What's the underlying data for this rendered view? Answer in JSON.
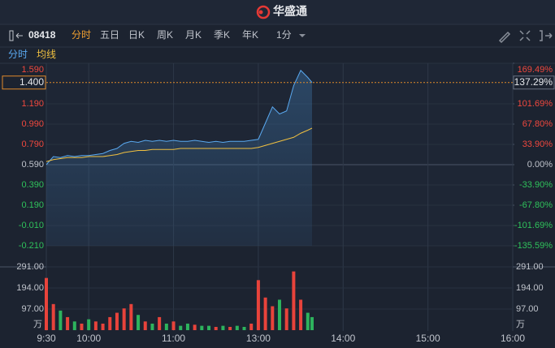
{
  "header": {
    "title": "华盛通"
  },
  "toolbar": {
    "code": "08418",
    "tabs": [
      "分时",
      "五日",
      "日K",
      "周K",
      "月K",
      "季K",
      "年K"
    ],
    "interval": "1分"
  },
  "chart_data": [
    {
      "type": "line",
      "x": [
        0,
        5,
        10,
        15,
        20,
        25,
        30,
        35,
        40,
        45,
        50,
        55,
        60,
        65,
        70,
        75,
        80,
        85,
        90,
        95,
        100,
        105,
        110,
        115,
        120,
        125,
        130,
        135,
        140,
        145,
        150,
        155,
        160,
        165,
        170,
        175,
        180,
        185,
        188
      ],
      "xlim": [
        0,
        330
      ],
      "xticks": [
        {
          "value": 0,
          "label": "9:30"
        },
        {
          "value": 30,
          "label": "10:00"
        },
        {
          "value": 90,
          "label": "11:00"
        },
        {
          "value": 150,
          "label": "13:00"
        },
        {
          "value": 210,
          "label": "14:00"
        },
        {
          "value": 270,
          "label": "15:00"
        },
        {
          "value": 330,
          "label": "16:00"
        }
      ],
      "ylim": [
        -0.21,
        1.59
      ],
      "yticks": [
        {
          "value": 1.59,
          "label": "1.590"
        },
        {
          "value": 1.19,
          "label": "1.190"
        },
        {
          "value": 0.99,
          "label": "0.990"
        },
        {
          "value": 0.79,
          "label": "0.790"
        },
        {
          "value": 0.59,
          "label": "0.590"
        },
        {
          "value": 0.39,
          "label": "0.390"
        },
        {
          "value": 0.19,
          "label": "0.190"
        },
        {
          "value": -0.01,
          "label": "-0.010"
        },
        {
          "value": -0.21,
          "label": "-0.210"
        }
      ],
      "y2lim": [
        -135.59,
        169.49
      ],
      "y2ticks": [
        {
          "value": 169.49,
          "label": "169.49%"
        },
        {
          "value": 101.69,
          "label": "101.69%"
        },
        {
          "value": 67.8,
          "label": "67.80%"
        },
        {
          "value": 33.9,
          "label": "33.90%"
        },
        {
          "value": 0,
          "label": "0.00%"
        },
        {
          "value": -33.9,
          "label": "-33.90%"
        },
        {
          "value": -67.8,
          "label": "-67.80%"
        },
        {
          "value": -101.69,
          "label": "-101.69%"
        },
        {
          "value": -135.59,
          "label": "-135.59%"
        }
      ],
      "last_price": {
        "value": 1.4,
        "label": "1.400"
      },
      "last_change": {
        "value": 137.29,
        "label": "137.29%"
      },
      "series": [
        {
          "name": "分时",
          "color": "#5aa9f0",
          "values": [
            0.59,
            0.67,
            0.66,
            0.68,
            0.67,
            0.68,
            0.68,
            0.69,
            0.7,
            0.73,
            0.75,
            0.8,
            0.82,
            0.81,
            0.83,
            0.82,
            0.83,
            0.82,
            0.83,
            0.82,
            0.82,
            0.83,
            0.82,
            0.81,
            0.82,
            0.81,
            0.82,
            0.82,
            0.82,
            0.83,
            0.84,
            1.0,
            1.16,
            1.09,
            1.12,
            1.37,
            1.52,
            1.45,
            1.4
          ]
        },
        {
          "name": "均线",
          "color": "#f0c040",
          "values": [
            0.62,
            0.64,
            0.65,
            0.66,
            0.66,
            0.66,
            0.67,
            0.67,
            0.67,
            0.68,
            0.69,
            0.71,
            0.72,
            0.73,
            0.73,
            0.74,
            0.74,
            0.74,
            0.74,
            0.75,
            0.75,
            0.75,
            0.75,
            0.75,
            0.75,
            0.75,
            0.75,
            0.75,
            0.75,
            0.75,
            0.76,
            0.78,
            0.8,
            0.82,
            0.84,
            0.86,
            0.9,
            0.93,
            0.95
          ]
        }
      ]
    },
    {
      "type": "bar",
      "x": [
        0,
        5,
        10,
        15,
        20,
        25,
        30,
        35,
        40,
        45,
        50,
        55,
        60,
        65,
        70,
        75,
        80,
        85,
        90,
        95,
        100,
        105,
        110,
        115,
        120,
        125,
        130,
        135,
        140,
        145,
        150,
        155,
        160,
        165,
        170,
        175,
        180,
        185,
        188
      ],
      "xlim": [
        0,
        330
      ],
      "values": [
        240,
        120,
        90,
        60,
        40,
        30,
        50,
        40,
        30,
        60,
        80,
        100,
        120,
        70,
        40,
        30,
        60,
        30,
        40,
        20,
        30,
        25,
        20,
        20,
        15,
        20,
        15,
        20,
        15,
        30,
        230,
        150,
        110,
        140,
        100,
        270,
        140,
        80,
        60
      ],
      "colors": [
        "#e8433b",
        "#e8433b",
        "#2db35d",
        "#e8433b",
        "#2db35d",
        "#e8433b",
        "#2db35d",
        "#e8433b",
        "#e8433b",
        "#e8433b",
        "#e8433b",
        "#e8433b",
        "#e8433b",
        "#2db35d",
        "#e8433b",
        "#2db35d",
        "#e8433b",
        "#2db35d",
        "#e8433b",
        "#2db35d",
        "#2db35d",
        "#e8433b",
        "#2db35d",
        "#2db35d",
        "#e8433b",
        "#2db35d",
        "#e8433b",
        "#2db35d",
        "#2db35d",
        "#e8433b",
        "#e8433b",
        "#e8433b",
        "#e8433b",
        "#2db35d",
        "#e8433b",
        "#e8433b",
        "#e8433b",
        "#2db35d",
        "#2db35d"
      ],
      "ylim": [
        0,
        291
      ],
      "yticks": [
        {
          "value": 291,
          "label": "291.00"
        },
        {
          "value": 194,
          "label": "194.00"
        },
        {
          "value": 97,
          "label": "97.00"
        }
      ],
      "unit": "万"
    }
  ]
}
